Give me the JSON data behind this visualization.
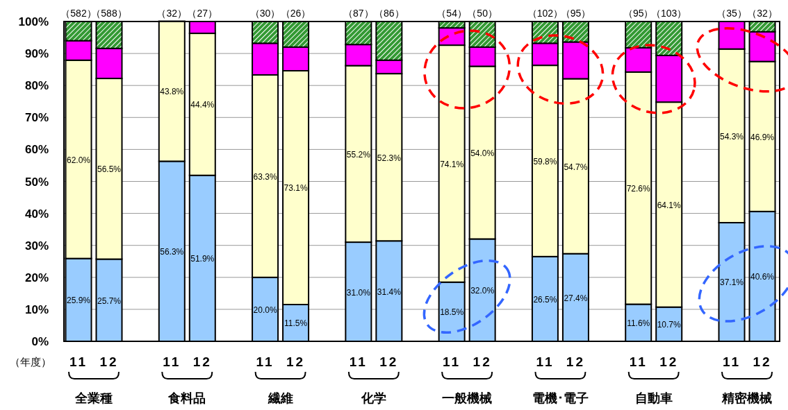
{
  "chart_data": {
    "type": "bar",
    "stacked": true,
    "xlabel": "（年度）",
    "categories": [
      "11",
      "12",
      "11",
      "12",
      "11",
      "12",
      "11",
      "12",
      "11",
      "12",
      "11",
      "12",
      "11",
      "12",
      "11",
      "12"
    ],
    "series": [
      {
        "color": "#99ccff",
        "values": [
          25.9,
          25.7,
          56.3,
          51.9,
          20.0,
          11.5,
          31.0,
          31.4,
          18.5,
          32.0,
          26.5,
          27.4,
          11.6,
          10.7,
          37.1,
          40.6
        ],
        "value_labels": [
          "25.9%",
          "25.7%",
          "56.3%",
          "51.9%",
          "20.0%",
          "11.5%",
          "31.0%",
          "31.4%",
          "18.5%",
          "32.0%",
          "26.5%",
          "27.4%",
          "11.6%",
          "10.7%",
          "37.1%",
          "40.6%"
        ]
      },
      {
        "color": "#ffffcc",
        "values": [
          62.0,
          56.5,
          43.8,
          44.4,
          63.3,
          73.1,
          55.2,
          52.3,
          74.1,
          54.0,
          59.8,
          54.7,
          72.6,
          64.1,
          54.3,
          46.9
        ],
        "value_labels": [
          "62.0%",
          "56.5%",
          "43.8%",
          "44.4%",
          "63.3%",
          "73.1%",
          "55.2%",
          "52.3%",
          "74.1%",
          "54.0%",
          "59.8%",
          "54.7%",
          "72.6%",
          "64.1%",
          "54.3%",
          "46.9%"
        ]
      },
      {
        "color": "#ff00ff",
        "values": [
          6.1,
          9.4,
          null,
          3.7,
          9.9,
          7.4,
          6.6,
          4.2,
          5.4,
          6.0,
          6.9,
          11.5,
          7.6,
          14.6,
          8.6,
          9.3
        ]
      },
      {
        "color": "#339933",
        "values": [
          6.0,
          8.4,
          null,
          null,
          6.8,
          8.0,
          7.2,
          12.1,
          2.0,
          8.0,
          6.8,
          6.4,
          8.2,
          10.6,
          null,
          3.2
        ]
      }
    ],
    "ylim": [
      0,
      100
    ],
    "yticks": [
      {
        "value": 0,
        "label": "0%"
      },
      {
        "value": 10,
        "label": "10%"
      },
      {
        "value": 20,
        "label": "20%"
      },
      {
        "value": 30,
        "label": "30%"
      },
      {
        "value": 40,
        "label": "40%"
      },
      {
        "value": 50,
        "label": "50%"
      },
      {
        "value": 60,
        "label": "60%"
      },
      {
        "value": 70,
        "label": "70%"
      },
      {
        "value": 80,
        "label": "80%"
      },
      {
        "value": 90,
        "label": "90%"
      },
      {
        "value": 100,
        "label": "100%"
      }
    ],
    "grid": "y",
    "annotations": [
      "（582）",
      "（588）",
      "（32）",
      "（27）",
      "（30）",
      "（26）",
      "（87）",
      "（86）",
      "（54）",
      "（50）",
      "（102）",
      "（95）",
      "（95）",
      "（103）",
      "（35）",
      "（32）",
      "全業種",
      "食料品",
      "繊維",
      "化学",
      "一般機械",
      "電機･電子",
      "自動車",
      "精密機械"
    ]
  }
}
